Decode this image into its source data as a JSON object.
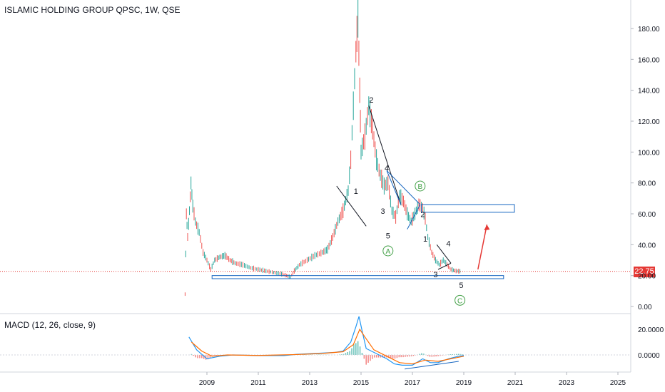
{
  "header": {
    "title": "ISLAMIC HOLDING GROUP QPSC, 1W, QSE"
  },
  "macd": {
    "title": "MACD (12, 26, close, 9)"
  },
  "colors": {
    "up": "#26a69a",
    "down": "#ef5350",
    "drawing": "#1565c0",
    "accent_arrow": "#e53935",
    "price_line": "#e53935",
    "macd_line": "#2196f3",
    "signal_line": "#ff6d00"
  },
  "chart_data": {
    "type": "candlestick",
    "title": "ISLAMIC HOLDING GROUP QPSC, 1W, QSE",
    "x_ticks": [
      "2009",
      "2011",
      "2013",
      "2015",
      "2017",
      "2019",
      "2021",
      "2023",
      "2025"
    ],
    "y_ticks": [
      "0.00",
      "20.00",
      "40.00",
      "60.00",
      "80.00",
      "100.00",
      "120.00",
      "140.00",
      "160.00",
      "180.00"
    ],
    "ylim": [
      0,
      190
    ],
    "xlim": [
      2007.6,
      2026.0
    ],
    "last_price": "22.75",
    "price_series": [
      [
        2008.15,
        8
      ],
      [
        2008.2,
        60
      ],
      [
        2008.25,
        45
      ],
      [
        2008.32,
        62
      ],
      [
        2008.38,
        80
      ],
      [
        2008.45,
        65
      ],
      [
        2008.55,
        55
      ],
      [
        2008.7,
        48
      ],
      [
        2008.85,
        35
      ],
      [
        2009.0,
        30
      ],
      [
        2009.15,
        24
      ],
      [
        2009.3,
        30
      ],
      [
        2009.5,
        32
      ],
      [
        2009.7,
        33
      ],
      [
        2009.9,
        30
      ],
      [
        2010.1,
        28
      ],
      [
        2010.4,
        27
      ],
      [
        2010.7,
        25
      ],
      [
        2011.0,
        24
      ],
      [
        2011.3,
        23
      ],
      [
        2011.6,
        22
      ],
      [
        2011.9,
        21
      ],
      [
        2012.1,
        20
      ],
      [
        2012.25,
        19
      ],
      [
        2012.4,
        23
      ],
      [
        2012.6,
        27
      ],
      [
        2012.9,
        30
      ],
      [
        2013.2,
        33
      ],
      [
        2013.5,
        35
      ],
      [
        2013.7,
        37
      ],
      [
        2013.9,
        45
      ],
      [
        2014.1,
        55
      ],
      [
        2014.3,
        62
      ],
      [
        2014.5,
        75
      ],
      [
        2014.6,
        95
      ],
      [
        2014.7,
        130
      ],
      [
        2014.8,
        165
      ],
      [
        2014.88,
        188
      ],
      [
        2014.95,
        140
      ],
      [
        2015.0,
        100
      ],
      [
        2015.15,
        110
      ],
      [
        2015.3,
        130
      ],
      [
        2015.45,
        115
      ],
      [
        2015.6,
        95
      ],
      [
        2015.75,
        85
      ],
      [
        2015.9,
        78
      ],
      [
        2016.05,
        80
      ],
      [
        2016.2,
        62
      ],
      [
        2016.35,
        58
      ],
      [
        2016.5,
        72
      ],
      [
        2016.65,
        68
      ],
      [
        2016.8,
        60
      ],
      [
        2016.95,
        55
      ],
      [
        2017.1,
        60
      ],
      [
        2017.25,
        66
      ],
      [
        2017.4,
        64
      ],
      [
        2017.5,
        57
      ],
      [
        2017.6,
        45
      ],
      [
        2017.75,
        35
      ],
      [
        2017.9,
        30
      ],
      [
        2018.05,
        27
      ],
      [
        2018.2,
        30
      ],
      [
        2018.35,
        27
      ],
      [
        2018.5,
        24
      ],
      [
        2018.7,
        23
      ],
      [
        2018.9,
        22.75
      ]
    ],
    "macd_ylim": [
      -12,
      26
    ],
    "macd_ticks": [
      "20.0000",
      "0.0000"
    ],
    "macd_line": [
      [
        2008.3,
        14
      ],
      [
        2008.6,
        4
      ],
      [
        2009.0,
        -3
      ],
      [
        2009.5,
        -1
      ],
      [
        2010.0,
        0
      ],
      [
        2011.0,
        -0.5
      ],
      [
        2012.0,
        -0.5
      ],
      [
        2012.5,
        0.5
      ],
      [
        2013.0,
        1
      ],
      [
        2013.5,
        1.5
      ],
      [
        2014.0,
        2
      ],
      [
        2014.3,
        3
      ],
      [
        2014.6,
        10
      ],
      [
        2014.8,
        22
      ],
      [
        2014.92,
        30
      ],
      [
        2015.05,
        18
      ],
      [
        2015.2,
        5
      ],
      [
        2015.5,
        2
      ],
      [
        2016.0,
        -3
      ],
      [
        2016.3,
        -7
      ],
      [
        2016.6,
        -8
      ],
      [
        2017.0,
        -8
      ],
      [
        2017.4,
        -3
      ],
      [
        2017.7,
        -6
      ],
      [
        2018.0,
        -6
      ],
      [
        2018.4,
        -3
      ],
      [
        2018.8,
        -1
      ],
      [
        2019.0,
        -0.5
      ]
    ],
    "signal_line": [
      [
        2008.4,
        10
      ],
      [
        2008.8,
        3
      ],
      [
        2009.2,
        -1
      ],
      [
        2009.8,
        0
      ],
      [
        2011.0,
        -0.4
      ],
      [
        2012.5,
        0.3
      ],
      [
        2013.5,
        1.2
      ],
      [
        2014.3,
        2.5
      ],
      [
        2014.7,
        8
      ],
      [
        2014.95,
        20
      ],
      [
        2015.15,
        14
      ],
      [
        2015.5,
        4
      ],
      [
        2016.0,
        -1
      ],
      [
        2016.5,
        -6
      ],
      [
        2017.0,
        -7
      ],
      [
        2017.5,
        -4
      ],
      [
        2018.0,
        -5
      ],
      [
        2018.5,
        -3
      ],
      [
        2019.0,
        -1
      ]
    ],
    "annotations": {
      "wave_labels": [
        "1",
        "2",
        "3",
        "4",
        "5",
        "1",
        "2",
        "3",
        "4",
        "5"
      ],
      "corrective_labels": [
        "A",
        "B",
        "C"
      ],
      "target_zone": [
        61,
        66
      ],
      "support_zone": [
        18,
        20
      ]
    }
  }
}
